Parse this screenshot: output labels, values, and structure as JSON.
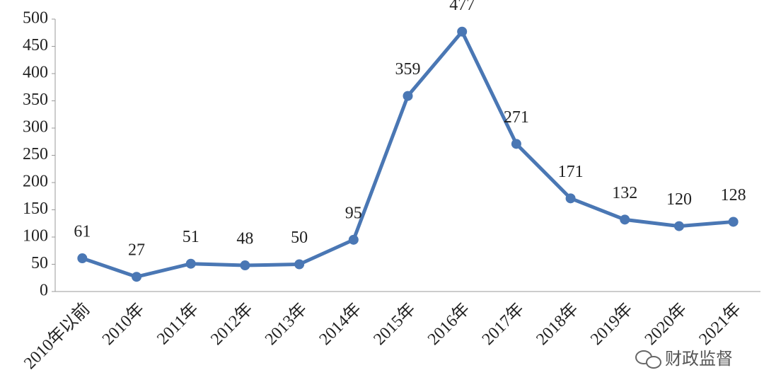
{
  "chart_data": {
    "type": "line",
    "categories": [
      "2010年以前",
      "2010年",
      "2011年",
      "2012年",
      "2013年",
      "2014年",
      "2015年",
      "2016年",
      "2017年",
      "2018年",
      "2019年",
      "2020年",
      "2021年"
    ],
    "values": [
      61,
      27,
      51,
      48,
      50,
      95,
      359,
      477,
      271,
      171,
      132,
      120,
      128
    ],
    "color": "#4a77b4",
    "ylim": [
      0,
      500
    ],
    "yticks": [
      0,
      50,
      100,
      150,
      200,
      250,
      300,
      350,
      400,
      450,
      500
    ],
    "grid": false,
    "watermark": "财政监督"
  }
}
